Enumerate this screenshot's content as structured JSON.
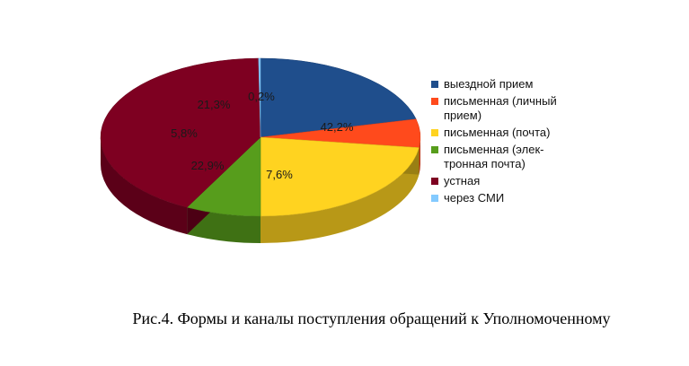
{
  "caption": "Рис.4. Формы и каналы поступления обращений к Уполномоченному",
  "chart_data": {
    "type": "pie",
    "title": "",
    "style": "3d-pie",
    "legend_position": "right",
    "slices": [
      {
        "name": "выездной прием",
        "value": 21.3,
        "label": "21,3%",
        "color": "#1f4e8c"
      },
      {
        "name": "письменная (личный\nприем)",
        "value": 5.8,
        "label": "5,8%",
        "color": "#ff4a1c"
      },
      {
        "name": "письменная (почта)",
        "value": 22.9,
        "label": "22,9%",
        "color": "#ffd320"
      },
      {
        "name": "письменная (элек-\nтронная почта)",
        "value": 7.6,
        "label": "7,6%",
        "color": "#579d1c"
      },
      {
        "name": "устная",
        "value": 42.2,
        "label": "42,2%",
        "color": "#7e0021"
      },
      {
        "name": "через СМИ",
        "value": 0.2,
        "label": "0,2%",
        "color": "#83caff"
      }
    ]
  }
}
